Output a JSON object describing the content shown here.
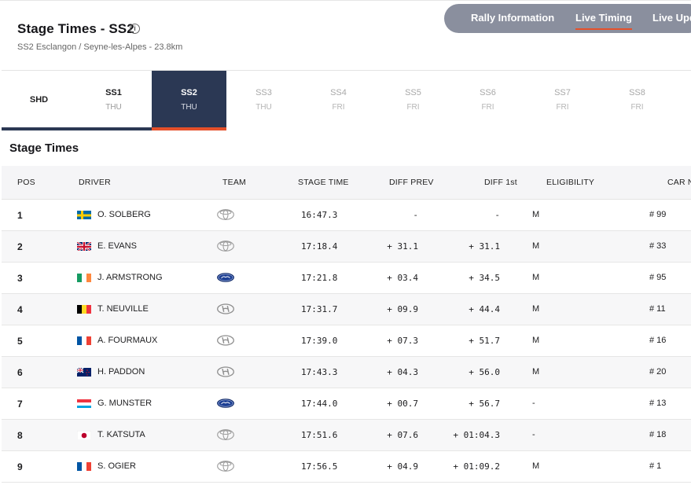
{
  "header": {
    "title": "Stage Times - SS2",
    "subtitle": "SS2 Esclangon / Seyne-les-Alpes - 23.8km",
    "info_icon": "info-icon"
  },
  "nav": {
    "items": [
      {
        "label": "Rally Information",
        "active": false
      },
      {
        "label": "Live Timing",
        "active": true
      },
      {
        "label": "Live Upd",
        "active": false
      }
    ]
  },
  "stages": [
    {
      "name": "SHD",
      "day": "",
      "state": "done"
    },
    {
      "name": "SS1",
      "day": "THU",
      "state": "done"
    },
    {
      "name": "SS2",
      "day": "THU",
      "state": "active"
    },
    {
      "name": "SS3",
      "day": "THU",
      "state": "future"
    },
    {
      "name": "SS4",
      "day": "FRI",
      "state": "future"
    },
    {
      "name": "SS5",
      "day": "FRI",
      "state": "future"
    },
    {
      "name": "SS6",
      "day": "FRI",
      "state": "future"
    },
    {
      "name": "SS7",
      "day": "FRI",
      "state": "future"
    },
    {
      "name": "SS8",
      "day": "FRI",
      "state": "future"
    }
  ],
  "section_title": "Stage Times",
  "columns": {
    "pos": "POS",
    "driver": "DRIVER",
    "team": "TEAM",
    "stage_time": "STAGE TIME",
    "diff_prev": "DIFF PREV",
    "diff_first": "DIFF 1st",
    "eligibility": "ELIGIBILITY",
    "car_no": "CAR N"
  },
  "rows": [
    {
      "pos": "1",
      "flag": "sweden",
      "driver": "O. SOLBERG",
      "team": "toyota",
      "stage_time": "16:47.3",
      "diff_prev": "-",
      "diff_first": "-",
      "eligibility": "M",
      "car_no": "# 99"
    },
    {
      "pos": "2",
      "flag": "uk",
      "driver": "E. EVANS",
      "team": "toyota",
      "stage_time": "17:18.4",
      "diff_prev": "+ 31.1",
      "diff_first": "+ 31.1",
      "eligibility": "M",
      "car_no": "# 33"
    },
    {
      "pos": "3",
      "flag": "ireland",
      "driver": "J. ARMSTRONG",
      "team": "ford",
      "stage_time": "17:21.8",
      "diff_prev": "+ 03.4",
      "diff_first": "+ 34.5",
      "eligibility": "M",
      "car_no": "# 95"
    },
    {
      "pos": "4",
      "flag": "belgium",
      "driver": "T. NEUVILLE",
      "team": "hyundai",
      "stage_time": "17:31.7",
      "diff_prev": "+ 09.9",
      "diff_first": "+ 44.4",
      "eligibility": "M",
      "car_no": "# 11"
    },
    {
      "pos": "5",
      "flag": "france",
      "driver": "A. FOURMAUX",
      "team": "hyundai",
      "stage_time": "17:39.0",
      "diff_prev": "+ 07.3",
      "diff_first": "+ 51.7",
      "eligibility": "M",
      "car_no": "# 16"
    },
    {
      "pos": "6",
      "flag": "new-zealand",
      "driver": "H. PADDON",
      "team": "hyundai",
      "stage_time": "17:43.3",
      "diff_prev": "+ 04.3",
      "diff_first": "+ 56.0",
      "eligibility": "M",
      "car_no": "# 20"
    },
    {
      "pos": "7",
      "flag": "luxembourg",
      "driver": "G. MUNSTER",
      "team": "ford",
      "stage_time": "17:44.0",
      "diff_prev": "+ 00.7",
      "diff_first": "+ 56.7",
      "eligibility": "-",
      "car_no": "# 13"
    },
    {
      "pos": "8",
      "flag": "japan",
      "driver": "T. KATSUTA",
      "team": "toyota",
      "stage_time": "17:51.6",
      "diff_prev": "+ 07.6",
      "diff_first": "+ 01:04.3",
      "eligibility": "-",
      "car_no": "# 18"
    },
    {
      "pos": "9",
      "flag": "france",
      "driver": "S. OGIER",
      "team": "toyota",
      "stage_time": "17:56.5",
      "diff_prev": "+ 04.9",
      "diff_first": "+ 01:09.2",
      "eligibility": "M",
      "car_no": "# 1"
    }
  ],
  "colors": {
    "active_tab": "#2b3854",
    "accent": "#e5502a",
    "nav_pill": "#8a8f9e"
  }
}
